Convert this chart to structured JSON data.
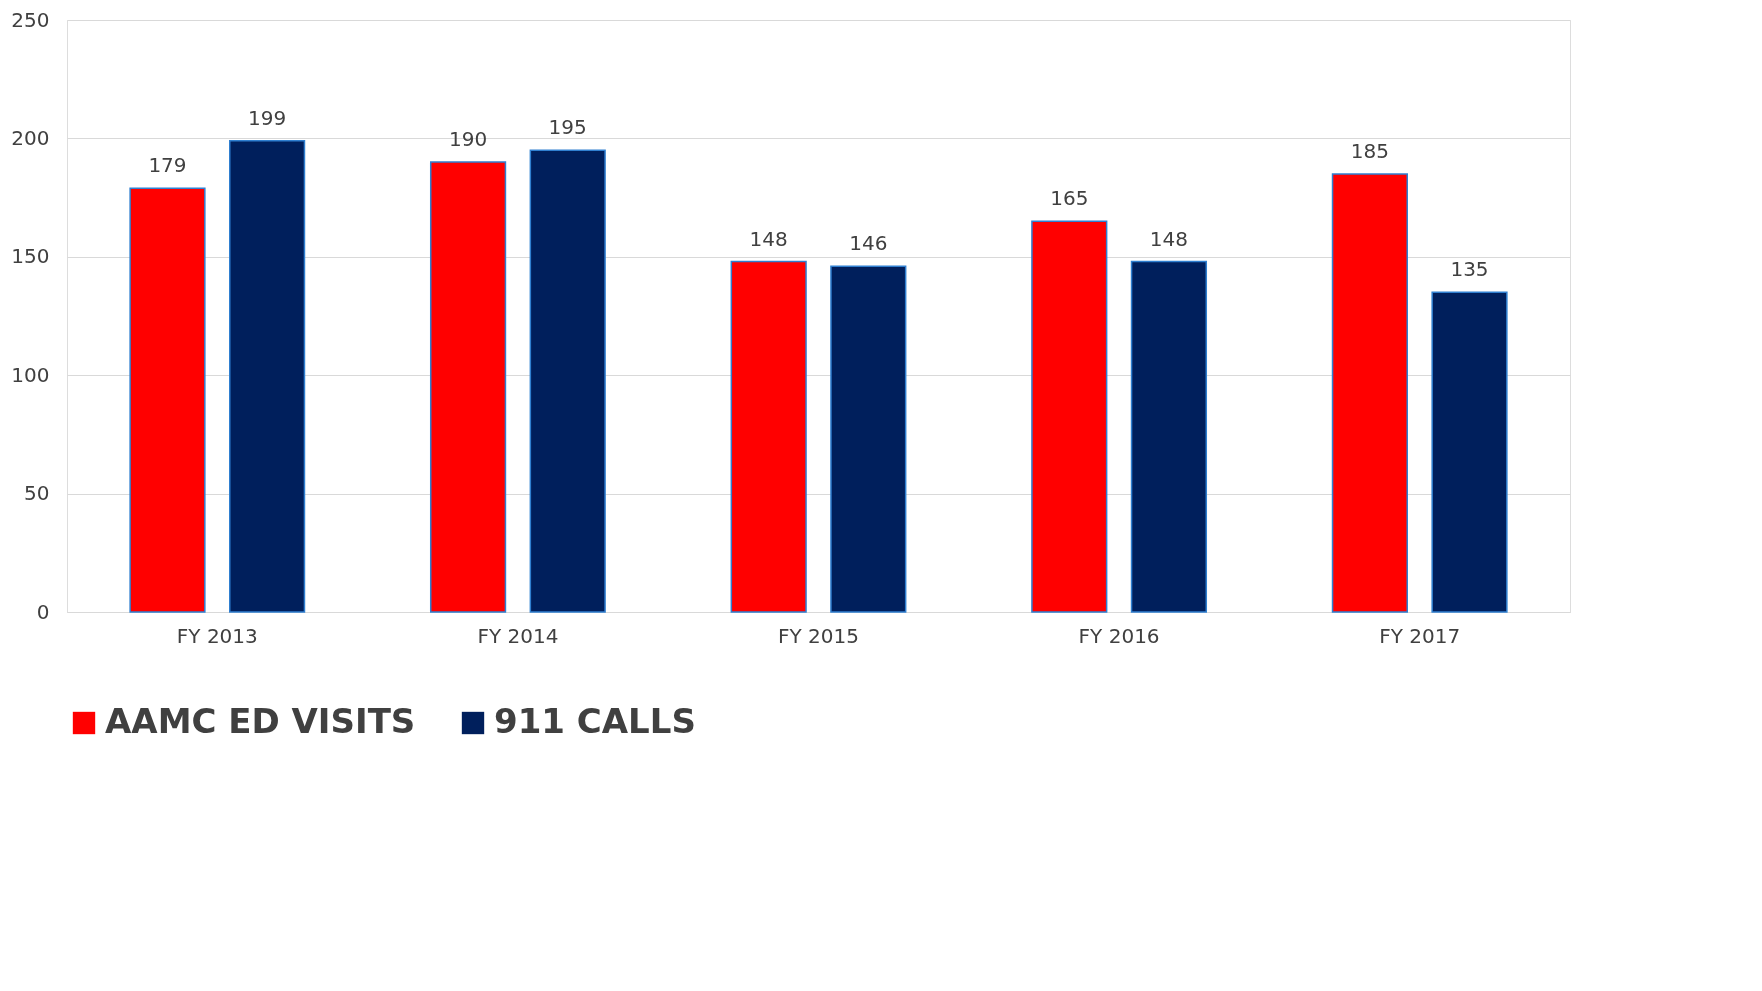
{
  "chart_data": {
    "type": "bar",
    "categories": [
      "FY 2013",
      "FY 2014",
      "FY 2015",
      "FY 2016",
      "FY 2017"
    ],
    "series": [
      {
        "name": "AAMC ED VISITS",
        "color": "#ff0000",
        "values": [
          179,
          190,
          148,
          165,
          185
        ]
      },
      {
        "name": "911 CALLS",
        "color": "#001f5c",
        "values": [
          199,
          195,
          146,
          148,
          135
        ]
      }
    ],
    "ylim": [
      0,
      250
    ],
    "yticks": [
      0,
      50,
      100,
      150,
      200,
      250
    ],
    "grid": "y",
    "legend": "bottom",
    "data_labels": true
  }
}
